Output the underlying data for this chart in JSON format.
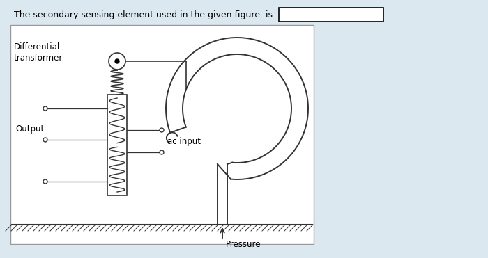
{
  "bg_color": "#dce8f0",
  "panel_color": "#ffffff",
  "panel_border": "#aaaaaa",
  "line_color": "#333333",
  "question_text": "The secondary sensing element used in the given figure  is",
  "label_differential": "Differential\ntransformer",
  "label_output": "Output",
  "label_ac_input": "ac input",
  "label_pressure": "Pressure",
  "fig_w": 7.0,
  "fig_h": 3.71,
  "dpi": 100
}
